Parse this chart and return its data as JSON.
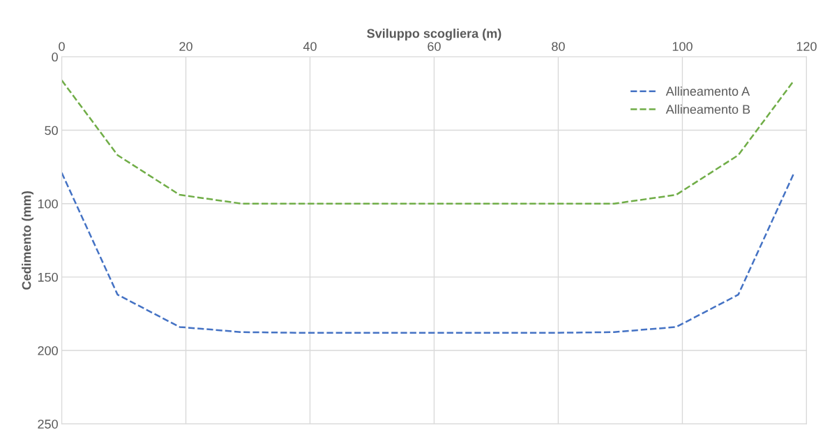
{
  "chart_data": {
    "type": "line",
    "xlabel": "Sviluppo scogliera (m)",
    "ylabel": "Cedimento (mm)",
    "x": [
      0,
      9,
      19,
      29,
      39,
      49,
      59,
      69,
      79,
      89,
      99,
      109,
      118
    ],
    "series": [
      {
        "name": "Allineamento A",
        "color": "#4472c4",
        "values": [
          79,
          162,
          184,
          187.5,
          188,
          188,
          188,
          188,
          188,
          187.5,
          184,
          162,
          79
        ]
      },
      {
        "name": "Allineamento B",
        "color": "#70ad47",
        "values": [
          16,
          67,
          94,
          100,
          100,
          100,
          100,
          100,
          100,
          100,
          94,
          67,
          16
        ]
      }
    ],
    "xlim": [
      0,
      120
    ],
    "xticks": [
      0,
      20,
      40,
      60,
      80,
      100,
      120
    ],
    "ylim": [
      250,
      0
    ],
    "yticks": [
      0,
      50,
      100,
      150,
      200,
      250
    ],
    "grid": true,
    "legend": "top right",
    "line_style": "dashed",
    "marker": "none"
  }
}
